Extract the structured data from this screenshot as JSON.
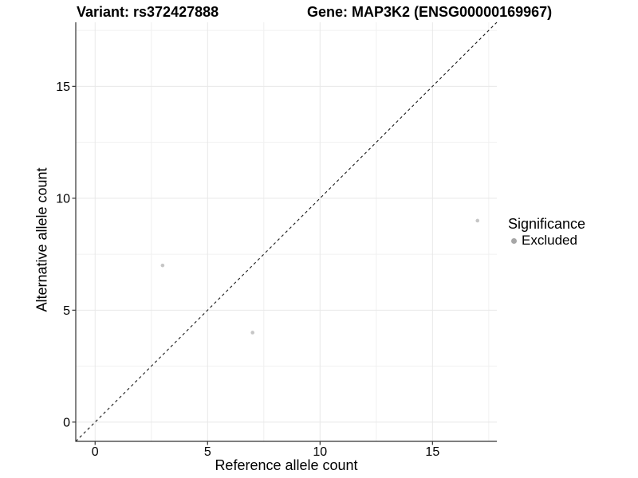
{
  "chart_data": {
    "type": "scatter",
    "titles": {
      "left": "Variant: rs372427888",
      "right": "Gene: MAP3K2 (ENSG00000169967)"
    },
    "xlabel": "Reference allele count",
    "ylabel": "Alternative allele count",
    "xlim": [
      -0.86,
      17.86
    ],
    "ylim": [
      -0.86,
      17.86
    ],
    "x_ticks": [
      0,
      5,
      10,
      15
    ],
    "y_ticks": [
      0,
      5,
      10,
      15
    ],
    "x_minor_ticks": [
      2.5,
      7.5,
      12.5,
      17.5
    ],
    "y_minor_ticks": [
      2.5,
      7.5,
      12.5,
      17.5
    ],
    "grid": {
      "on": true,
      "major_color": "#e8e8e8",
      "minor_color": "#f0f0f0"
    },
    "identity_line": {
      "style": "dashed",
      "slope": 1,
      "intercept": 0,
      "color": "#1a1a1a"
    },
    "series": [
      {
        "name": "Excluded",
        "point_color": "#c6c6c6",
        "points": [
          {
            "x": 3,
            "y": 7
          },
          {
            "x": 7,
            "y": 4
          },
          {
            "x": 17,
            "y": 9
          }
        ]
      }
    ],
    "legend": {
      "title": "Significance",
      "position": "right",
      "items": [
        {
          "label": "Excluded",
          "color": "#a6a6a6"
        }
      ]
    },
    "axis_color": "#333333",
    "tick_label_color": "#000000"
  }
}
